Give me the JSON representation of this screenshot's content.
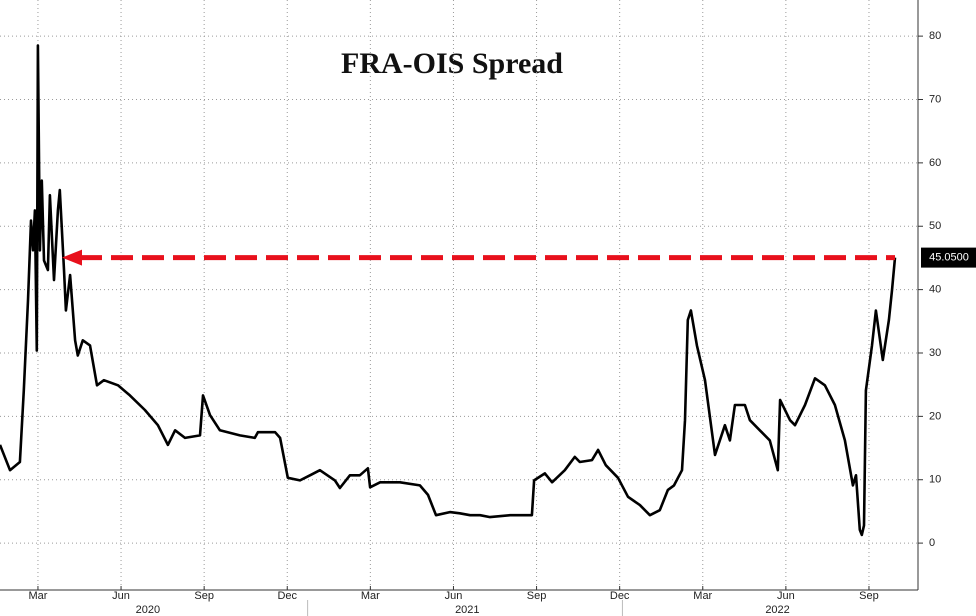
{
  "chart_data": {
    "type": "line",
    "title": "FRA-OIS Spread",
    "x": [
      0.63,
      0.99,
      1.35,
      1.49,
      1.64,
      1.75,
      1.82,
      1.89,
      1.96,
      2.0,
      2.07,
      2.14,
      2.22,
      2.36,
      2.43,
      2.58,
      2.72,
      2.79,
      2.94,
      3.01,
      3.16,
      3.34,
      3.44,
      3.62,
      3.88,
      4.13,
      4.38,
      4.89,
      5.32,
      5.86,
      6.33,
      6.69,
      6.95,
      7.31,
      7.85,
      7.96,
      8.21,
      8.57,
      9.29,
      9.83,
      9.94,
      10.56,
      10.74,
      11.02,
      11.46,
      11.82,
      12.18,
      12.72,
      12.9,
      13.26,
      13.62,
      13.91,
      13.99,
      14.35,
      15.07,
      15.79,
      16.08,
      16.37,
      16.87,
      17.23,
      17.6,
      17.96,
      18.32,
      19.04,
      19.83,
      19.91,
      20.3,
      20.56,
      21.02,
      21.38,
      21.56,
      22.0,
      22.22,
      22.5,
      22.94,
      23.3,
      23.73,
      24.09,
      24.45,
      24.74,
      24.96,
      25.25,
      25.36,
      25.46,
      25.57,
      25.79,
      26.08,
      26.44,
      26.8,
      26.98,
      27.16,
      27.52,
      27.7,
      28.06,
      28.42,
      28.71,
      28.79,
      29.15,
      29.33,
      29.69,
      30.05,
      30.41,
      30.77,
      31.13,
      31.42,
      31.53,
      31.67,
      31.74,
      31.82,
      31.89,
      32.11,
      32.25,
      32.5,
      32.72,
      32.83,
      32.94
    ],
    "series": [
      {
        "name": "FRA-OIS",
        "color": "#000000",
        "values": [
          15.5,
          11.5,
          12.8,
          24.1,
          38.3,
          50.9,
          46.2,
          52.5,
          30.4,
          78.5,
          46.2,
          57.2,
          44.6,
          43.1,
          54.9,
          41.5,
          52.5,
          55.7,
          43.1,
          36.7,
          42.3,
          32.0,
          29.6,
          32.0,
          31.2,
          24.9,
          25.7,
          24.9,
          23.3,
          21.0,
          18.6,
          15.5,
          17.8,
          16.6,
          17.0,
          23.3,
          20.2,
          17.8,
          17.0,
          16.6,
          17.5,
          17.5,
          16.6,
          10.3,
          9.9,
          10.7,
          11.5,
          9.9,
          8.7,
          10.7,
          10.7,
          11.8,
          8.8,
          9.6,
          9.6,
          9.1,
          7.6,
          4.4,
          4.9,
          4.7,
          4.4,
          4.4,
          4.1,
          4.4,
          4.4,
          9.9,
          11.0,
          9.6,
          11.5,
          13.6,
          12.8,
          13.1,
          14.7,
          12.3,
          10.3,
          7.3,
          6.0,
          4.4,
          5.2,
          8.4,
          9.1,
          11.5,
          19.4,
          35.2,
          36.7,
          31.2,
          25.7,
          13.9,
          18.6,
          16.2,
          21.8,
          21.8,
          19.4,
          17.8,
          16.2,
          11.5,
          22.6,
          19.4,
          18.6,
          21.8,
          26.0,
          24.9,
          21.8,
          16.2,
          9.1,
          10.7,
          2.1,
          1.3,
          2.8,
          24.1,
          31.2,
          36.7,
          28.9,
          35.2,
          39.9,
          45.05
        ]
      }
    ],
    "last_value_label": {
      "value": 45.05,
      "label": "45.0500"
    },
    "arrow_color": "#e8101c",
    "xlim": [
      0.63,
      33.77
    ],
    "xticks": [
      {
        "value": 2,
        "label": "Mar"
      },
      {
        "value": 5,
        "label": "Jun"
      },
      {
        "value": 8,
        "label": "Sep"
      },
      {
        "value": 11,
        "label": "Dec"
      },
      {
        "value": 14,
        "label": "Mar"
      },
      {
        "value": 17,
        "label": "Jun"
      },
      {
        "value": 20,
        "label": "Sep"
      },
      {
        "value": 23,
        "label": "Dec"
      },
      {
        "value": 26,
        "label": "Mar"
      },
      {
        "value": 29,
        "label": "Jun"
      },
      {
        "value": 32,
        "label": "Sep"
      }
    ],
    "year_labels": [
      {
        "value": 5.97,
        "label": "2020"
      },
      {
        "value": 17.5,
        "label": "2021"
      },
      {
        "value": 28.7,
        "label": "2022"
      }
    ],
    "ylim": [
      -7.4,
      85.7
    ],
    "yticks": [
      0,
      10,
      20,
      30,
      40,
      50,
      60,
      70,
      80
    ],
    "grid": true
  }
}
